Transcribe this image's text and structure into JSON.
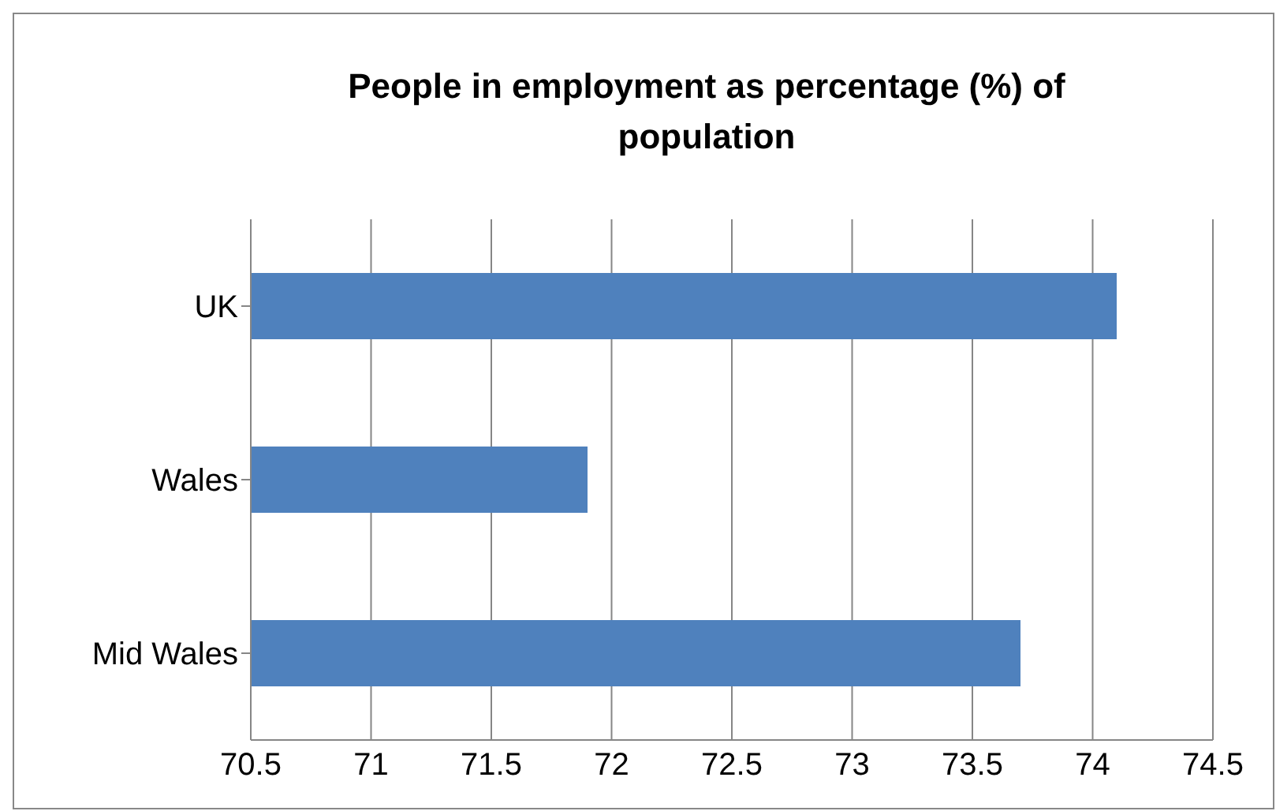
{
  "chart_data": {
    "type": "bar",
    "orientation": "horizontal",
    "title": "People in employment as percentage (%) of population",
    "categories": [
      "UK",
      "Wales",
      "Mid Wales"
    ],
    "values": [
      74.1,
      71.9,
      73.7
    ],
    "color": "#4f81bd",
    "xlim": [
      70.5,
      74.5
    ],
    "xticks": [
      70.5,
      71,
      71.5,
      72,
      72.5,
      73,
      73.5,
      74,
      74.5
    ],
    "grid": "x"
  }
}
